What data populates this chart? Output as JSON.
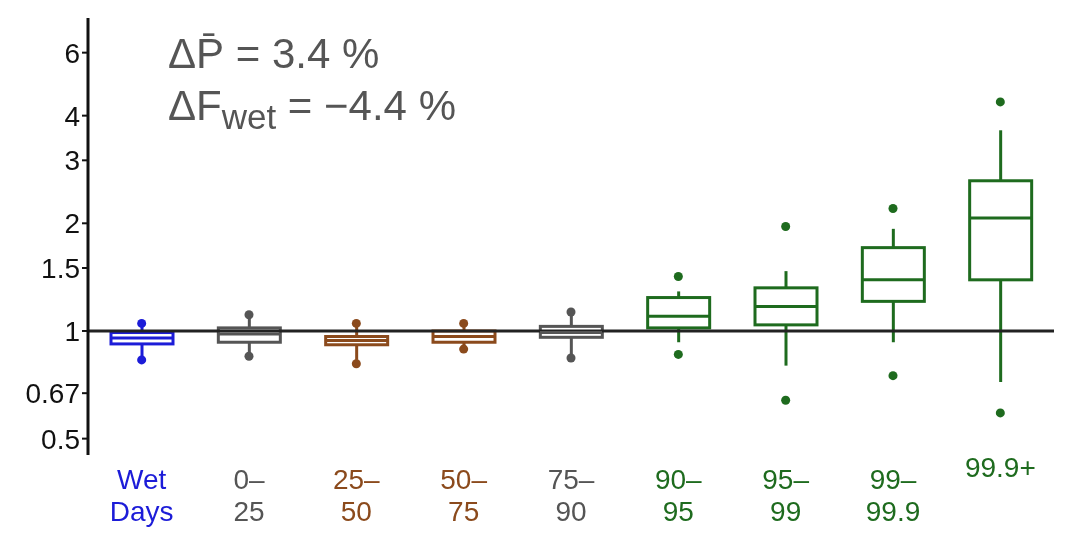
{
  "chart_data": {
    "type": "box",
    "categories": [
      "Wet\nDays",
      "0–\n25",
      "25–\n50",
      "50–\n75",
      "75–\n90",
      "90–\n95",
      "95–\n99",
      "99–\n99.9",
      "99.9+"
    ],
    "colors": [
      "#1c1cd8",
      "#555555",
      "#8b4a1c",
      "#8b4a1c",
      "#555555",
      "#1e6b1e",
      "#1e6b1e",
      "#1e6b1e",
      "#1e6b1e"
    ],
    "boxes": [
      {
        "low": 0.85,
        "q1": 0.92,
        "median": 0.955,
        "q3": 0.99,
        "high": 1.04,
        "outliers": [
          0.83,
          1.05
        ]
      },
      {
        "low": 0.86,
        "q1": 0.93,
        "median": 0.98,
        "q3": 1.02,
        "high": 1.1,
        "outliers": [
          0.85,
          1.11
        ]
      },
      {
        "low": 0.83,
        "q1": 0.915,
        "median": 0.94,
        "q3": 0.965,
        "high": 1.04,
        "outliers": [
          0.81,
          1.05
        ]
      },
      {
        "low": 0.9,
        "q1": 0.93,
        "median": 0.965,
        "q3": 1.0,
        "high": 1.04,
        "outliers": [
          0.89,
          1.05
        ]
      },
      {
        "low": 0.86,
        "q1": 0.96,
        "median": 0.99,
        "q3": 1.03,
        "high": 1.12,
        "outliers": [
          0.84,
          1.13
        ]
      },
      {
        "low": 0.93,
        "q1": 1.02,
        "median": 1.1,
        "q3": 1.24,
        "high": 1.29,
        "outliers": [
          0.86,
          1.42
        ]
      },
      {
        "low": 0.8,
        "q1": 1.04,
        "median": 1.17,
        "q3": 1.32,
        "high": 1.47,
        "outliers": [
          0.64,
          1.96
        ]
      },
      {
        "low": 0.93,
        "q1": 1.21,
        "median": 1.39,
        "q3": 1.71,
        "high": 1.93,
        "outliers": [
          0.75,
          2.2
        ]
      },
      {
        "low": 0.72,
        "q1": 1.39,
        "median": 2.07,
        "q3": 2.63,
        "high": 3.64,
        "outliers": [
          0.59,
          4.37
        ]
      }
    ],
    "ylim": [
      0.45,
      7.5
    ],
    "yticks": [
      0.5,
      0.67,
      1,
      1.5,
      2,
      3,
      4,
      6
    ],
    "log": true,
    "grid": false,
    "ref_lines": [
      {
        "axis": "y",
        "value": 1,
        "color": "#222222"
      }
    ],
    "annotations": [
      "ΔP̄ = 3.4 %",
      "ΔF$_{wet}$ = −4.4 %"
    ]
  }
}
